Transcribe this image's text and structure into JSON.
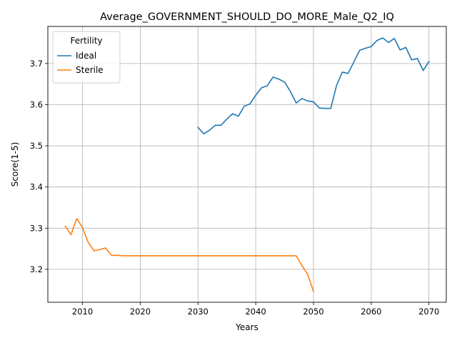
{
  "chart_data": {
    "type": "line",
    "title": "Average_GOVERNMENT_SHOULD_DO_MORE_Male_Q2_IQ",
    "xlabel": "Years",
    "ylabel": "Score(1-5)",
    "xlim": [
      2004,
      2073
    ],
    "ylim": [
      3.12,
      3.79
    ],
    "xticks": [
      2010,
      2020,
      2030,
      2040,
      2050,
      2060,
      2070
    ],
    "yticks": [
      3.2,
      3.3,
      3.4,
      3.5,
      3.6,
      3.7
    ],
    "grid": true,
    "legend": {
      "title": "Fertility",
      "placement": "top-left"
    },
    "series": [
      {
        "name": "Ideal",
        "color": "#1f77b4",
        "x": [
          2030,
          2031,
          2032,
          2033,
          2034,
          2035,
          2036,
          2037,
          2038,
          2039,
          2040,
          2041,
          2042,
          2043,
          2044,
          2045,
          2046,
          2047,
          2048,
          2049,
          2050,
          2051,
          2052,
          2053,
          2054,
          2055,
          2056,
          2057,
          2058,
          2059,
          2060,
          2061,
          2062,
          2063,
          2064,
          2065,
          2066,
          2067,
          2068,
          2069,
          2070
        ],
        "y": [
          3.545,
          3.529,
          3.538,
          3.55,
          3.55,
          3.565,
          3.578,
          3.572,
          3.596,
          3.602,
          3.623,
          3.641,
          3.646,
          3.667,
          3.662,
          3.655,
          3.632,
          3.604,
          3.615,
          3.609,
          3.607,
          3.592,
          3.591,
          3.591,
          3.647,
          3.679,
          3.676,
          3.704,
          3.732,
          3.737,
          3.741,
          3.756,
          3.762,
          3.751,
          3.761,
          3.733,
          3.739,
          3.709,
          3.712,
          3.683,
          3.705
        ]
      },
      {
        "name": "Sterile",
        "color": "#ff7f0e",
        "x": [
          2007,
          2008,
          2009,
          2010,
          2011,
          2012,
          2013,
          2014,
          2015,
          2016,
          2017,
          2018,
          2019,
          2020,
          2021,
          2022,
          2023,
          2024,
          2025,
          2026,
          2027,
          2028,
          2029,
          2030,
          2031,
          2032,
          2033,
          2034,
          2035,
          2036,
          2037,
          2038,
          2039,
          2040,
          2041,
          2042,
          2043,
          2044,
          2045,
          2046,
          2047,
          2048,
          2049,
          2050
        ],
        "y": [
          3.305,
          3.284,
          3.323,
          3.302,
          3.265,
          3.245,
          3.248,
          3.252,
          3.234,
          3.234,
          3.233,
          3.233,
          3.233,
          3.233,
          3.233,
          3.233,
          3.233,
          3.233,
          3.233,
          3.233,
          3.233,
          3.233,
          3.233,
          3.233,
          3.233,
          3.233,
          3.233,
          3.233,
          3.233,
          3.233,
          3.233,
          3.233,
          3.233,
          3.233,
          3.233,
          3.233,
          3.233,
          3.233,
          3.233,
          3.233,
          3.233,
          3.209,
          3.188,
          3.146
        ]
      }
    ]
  }
}
